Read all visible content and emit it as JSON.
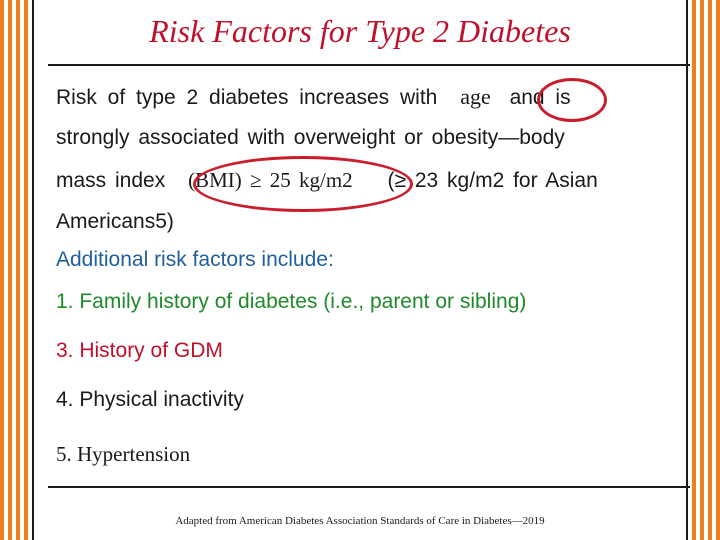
{
  "title": "Risk Factors for Type 2 Diabetes",
  "intro": {
    "line1_pre": "Risk of type 2 diabetes increases with",
    "line1_age": "age",
    "line1_post": "and is",
    "line2": "strongly associated with overweight or obesity—body",
    "line3_pre": "mass index",
    "line3_bmi": "(BMI) ≥ 25 kg/m2",
    "line3_post": "(≥ 23 kg/m2 for Asian",
    "line4": "Americans5)"
  },
  "additional_heading": "Additional risk factors include:",
  "factors": [
    "1. Family history of diabetes (i.e., parent or sibling)",
    "3. History of GDM",
    "4. Physical inactivity",
    "5. Hypertension"
  ],
  "footer": "Adapted from American Diabetes Association Standards of Care in Diabetes—2019",
  "colors": {
    "title": "#c0102c",
    "heading": "#1f5f9e",
    "factor_green": "#1f8a2a",
    "factor_red": "#c0102c",
    "stripe": "#f07f1e",
    "circle": "#c81e2e"
  }
}
